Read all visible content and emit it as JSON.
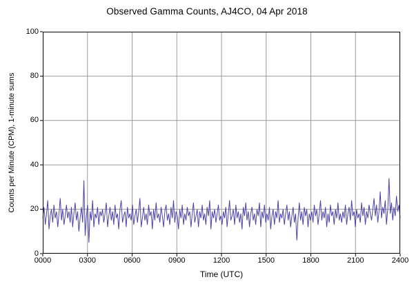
{
  "chart_data": {
    "type": "line",
    "title": "Observed Gamma Counts, AJ4CO, 04 Apr 2018",
    "xlabel": "Time (UTC)",
    "ylabel": "Counts per Minute (CPM), 1-minute sums",
    "xlim": [
      0,
      1440
    ],
    "ylim": [
      0,
      100
    ],
    "x_tick_labels": [
      "0000",
      "0300",
      "0600",
      "0900",
      "1200",
      "1500",
      "1800",
      "2100",
      "2400"
    ],
    "y_ticks": [
      0,
      20,
      40,
      60,
      80,
      100
    ],
    "grid": true,
    "legend": "none",
    "sample_interval_minutes": 5,
    "line_color": "#4a42a8",
    "grid_color": "#9a9a9a",
    "axis_color": "#000000",
    "background_color": "#ffffff",
    "series": [
      {
        "name": "Observed gamma counts",
        "values": [
          16,
          21,
          13,
          18,
          24,
          11,
          17,
          20,
          14,
          22,
          16,
          19,
          12,
          18,
          25,
          15,
          20,
          13,
          17,
          22,
          16,
          19,
          14,
          21,
          12,
          18,
          23,
          15,
          19,
          10,
          16,
          21,
          14,
          33,
          8,
          17,
          22,
          5,
          19,
          15,
          24,
          12,
          18,
          16,
          21,
          13,
          19,
          17,
          20,
          14,
          18,
          23,
          12,
          17,
          21,
          15,
          19,
          13,
          22,
          16,
          18,
          11,
          20,
          24,
          14,
          17,
          19,
          12,
          21,
          16,
          18,
          15,
          22,
          13,
          17,
          20,
          14,
          19,
          25,
          12,
          16,
          21,
          15,
          18,
          13,
          22,
          17,
          19,
          11,
          20,
          15,
          23,
          16,
          18,
          14,
          21,
          17,
          12,
          19,
          22,
          15,
          18,
          13,
          21,
          16,
          24,
          14,
          19,
          17,
          11,
          20,
          16,
          22,
          13,
          18,
          15,
          21,
          17,
          19,
          12,
          18,
          23,
          14,
          17,
          20,
          12,
          19,
          16,
          22,
          15,
          18,
          13,
          21,
          17,
          24,
          11,
          19,
          16,
          20,
          14,
          18,
          22,
          15,
          17,
          13,
          19,
          16,
          21,
          12,
          18,
          24,
          15,
          17,
          20,
          13,
          22,
          16,
          19,
          14,
          18,
          11,
          21,
          17,
          23,
          15,
          19,
          12,
          18,
          21,
          15,
          18,
          13,
          20,
          17,
          23,
          12,
          19,
          16,
          22,
          14,
          18,
          15,
          21,
          11,
          17,
          20,
          13,
          19,
          16,
          24,
          14,
          18,
          16,
          20,
          13,
          18,
          22,
          15,
          19,
          12,
          17,
          21,
          14,
          18,
          6,
          16,
          23,
          15,
          19,
          13,
          21,
          17,
          20,
          12,
          18,
          15,
          19,
          14,
          22,
          17,
          20,
          13,
          18,
          24,
          15,
          19,
          16,
          21,
          12,
          18,
          14,
          22,
          17,
          19,
          13,
          20,
          16,
          23,
          15,
          18,
          14,
          19,
          16,
          22,
          13,
          18,
          21,
          15,
          24,
          17,
          19,
          12,
          20,
          16,
          18,
          14,
          23,
          17,
          21,
          13,
          19,
          16,
          22,
          18,
          15,
          20,
          25,
          17,
          22,
          14,
          19,
          28,
          16,
          21,
          18,
          24,
          13,
          20,
          34,
          18,
          23,
          15,
          21,
          17,
          26,
          19,
          22,
          16
        ]
      }
    ]
  }
}
